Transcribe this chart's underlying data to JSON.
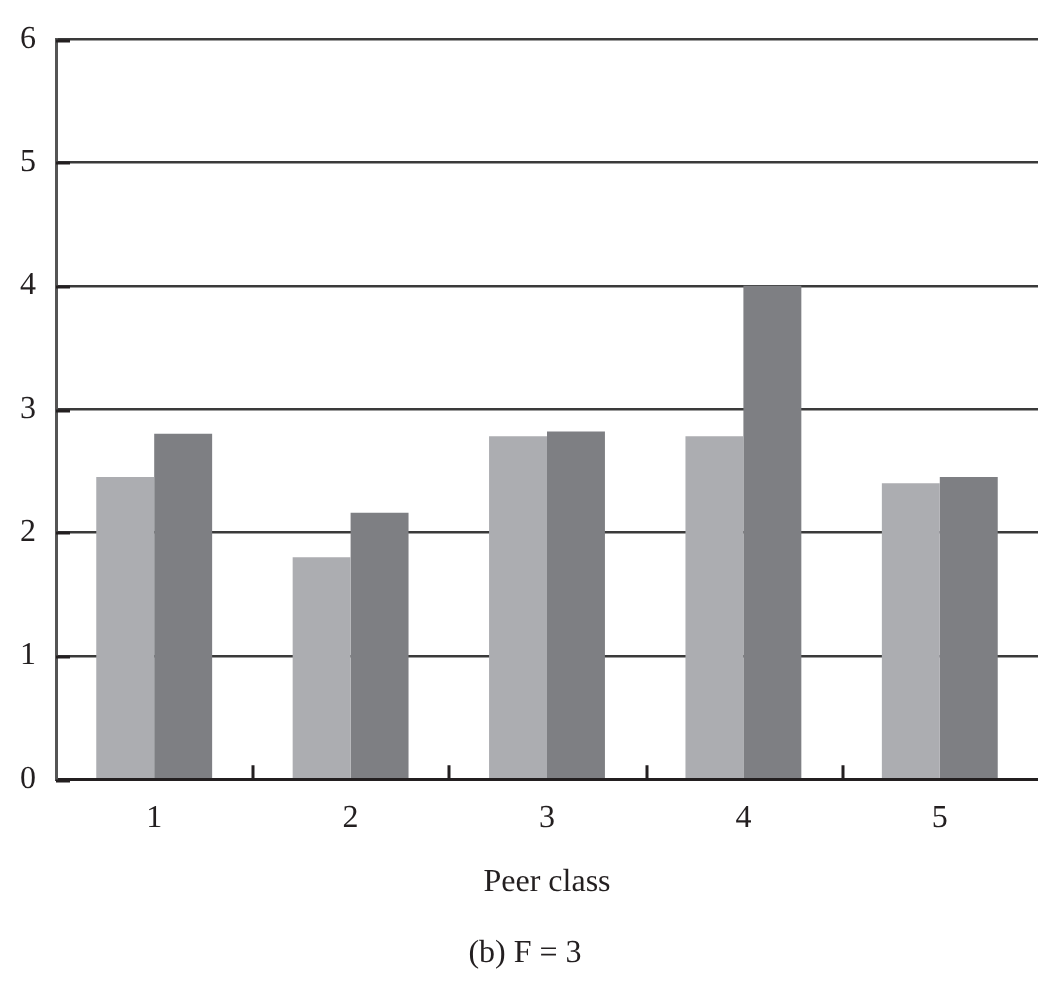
{
  "chart_data": {
    "type": "bar",
    "xlabel": "Peer class",
    "annotations": [
      "(b) F = 3"
    ],
    "categories": [
      "1",
      "2",
      "3",
      "4",
      "5"
    ],
    "series": [
      {
        "color": "#acadb1",
        "values": [
          2.45,
          1.8,
          2.78,
          2.78,
          2.4
        ]
      },
      {
        "color": "#7e7f83",
        "values": [
          2.8,
          2.16,
          2.82,
          4.0,
          2.45
        ]
      }
    ],
    "ylim": [
      0,
      6
    ],
    "yticks": [
      0,
      1,
      2,
      3,
      4,
      5,
      6
    ],
    "grid": "y",
    "legend": false
  }
}
